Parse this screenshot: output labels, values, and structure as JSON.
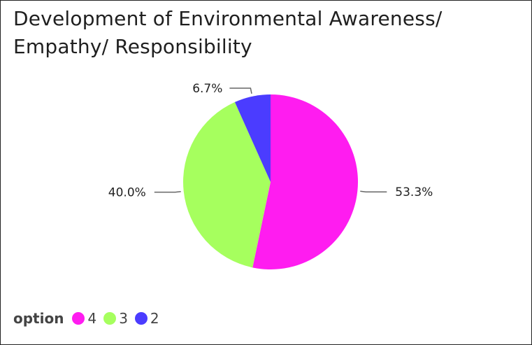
{
  "chart_data": {
    "type": "pie",
    "title": "Development of Environmental Awareness/ Empathy/ Responsibility",
    "legend": {
      "title": "option",
      "placement": "bottom-left"
    },
    "slices": [
      {
        "label": "4",
        "value": 53.3,
        "display": "53.3%",
        "color": "#ff1cf0"
      },
      {
        "label": "3",
        "value": 40.0,
        "display": "40.0%",
        "color": "#a6ff5e"
      },
      {
        "label": "2",
        "value": 6.7,
        "display": "6.7%",
        "color": "#4b3cff"
      }
    ]
  }
}
